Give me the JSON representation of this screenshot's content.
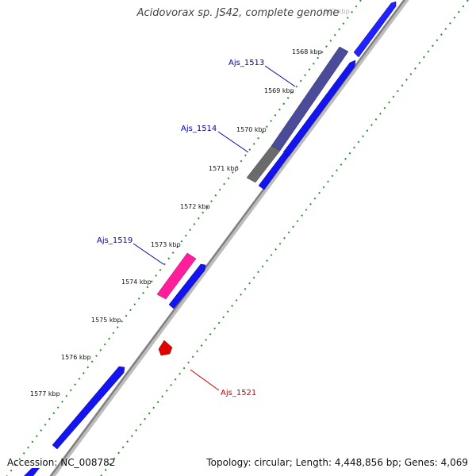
{
  "title": "Acidovorax sp. JS42, complete genome",
  "accession": "Accession: NC_008782",
  "summary": "Topology: circular; Length: 4,448,856 bp; Genes: 4,069",
  "colors": {
    "forward_cds": "#0000e6",
    "gene_label_blue": "#0000aa",
    "gene_label_red": "#cc0000",
    "tick": "#228b22",
    "backbone": "#888888"
  },
  "ticks": [
    {
      "label": "1568 kbp"
    },
    {
      "label": "1569 kbp"
    },
    {
      "label": "1570 kbp"
    },
    {
      "label": "1571 kbp"
    },
    {
      "label": "1572 kbp"
    },
    {
      "label": "1573 kbp"
    },
    {
      "label": "1574 kbp"
    },
    {
      "label": "1575 kbp"
    },
    {
      "label": "1576 kbp"
    },
    {
      "label": "1577 kbp"
    }
  ],
  "genes": [
    {
      "name": "Ajs_1513",
      "color": "#4b4b9a"
    },
    {
      "name": "Ajs_1514",
      "color": "#6b6b6b"
    },
    {
      "name": "Ajs_1519",
      "color": "#ff1f9a"
    },
    {
      "name": "Ajs_1521",
      "color": "#e00000"
    }
  ]
}
